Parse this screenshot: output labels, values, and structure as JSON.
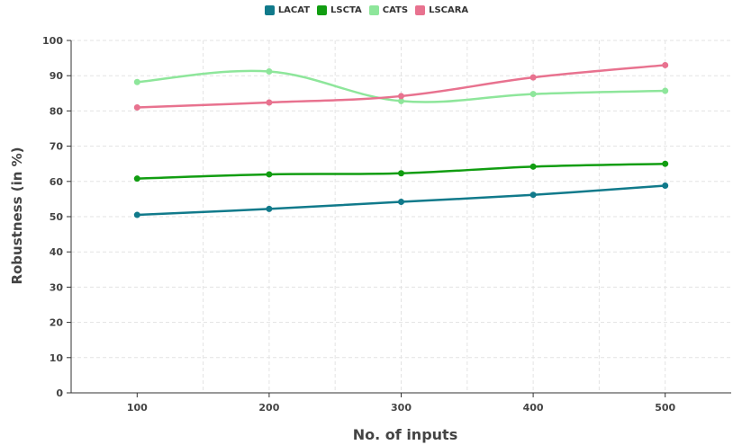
{
  "chart_data": {
    "type": "line",
    "title": "",
    "xlabel": "No. of inputs",
    "ylabel": "Robustness (in %)",
    "x": [
      100,
      200,
      300,
      400,
      500
    ],
    "xlim": [
      50,
      550
    ],
    "ylim": [
      0,
      100
    ],
    "yticks": [
      0,
      10,
      20,
      30,
      40,
      50,
      60,
      70,
      80,
      90,
      100
    ],
    "xticks": [
      100,
      200,
      300,
      400,
      500
    ],
    "grid": true,
    "legend_position": "top-center",
    "series": [
      {
        "name": "LACAT",
        "color": "#117a8b",
        "values": [
          50.5,
          52.2,
          54.2,
          56.2,
          58.8
        ]
      },
      {
        "name": "LSCTA",
        "color": "#119d11",
        "values": [
          60.8,
          62.0,
          62.3,
          64.2,
          65.0
        ]
      },
      {
        "name": "CATS",
        "color": "#8ee69b",
        "values": [
          88.2,
          91.2,
          82.8,
          84.8,
          85.7
        ]
      },
      {
        "name": "LSCARA",
        "color": "#e8728f",
        "values": [
          81.0,
          82.4,
          84.2,
          89.5,
          93.0
        ]
      }
    ]
  }
}
